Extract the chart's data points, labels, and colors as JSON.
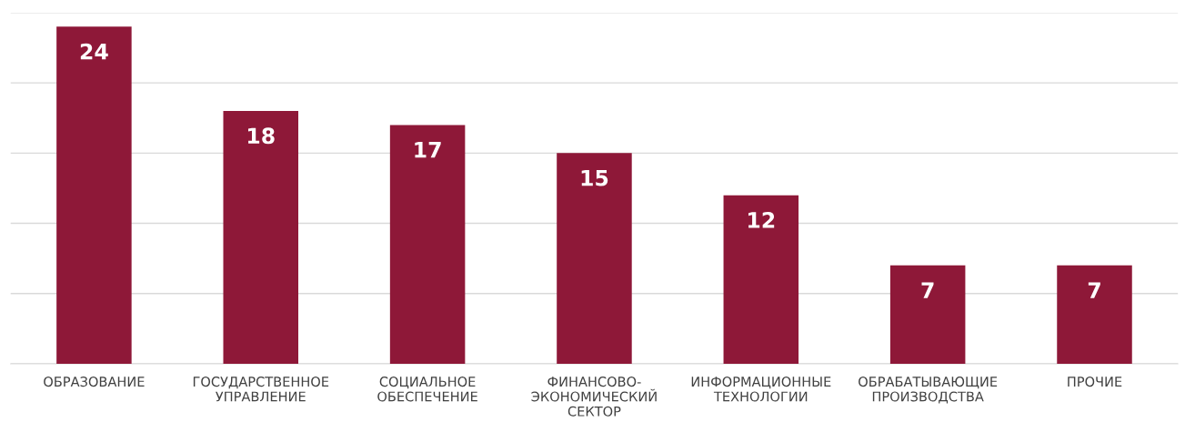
{
  "chart_data": {
    "type": "bar",
    "categories": [
      "ОБРАЗОВАНИЕ",
      "ГОСУДАРСТВЕННОЕ\nУПРАВЛЕНИЕ",
      "СОЦИАЛЬНОЕ\nОБЕСПЕЧЕНИЕ",
      "ФИНАНСОВО-\nЭКОНОМИЧЕСКИЙ\nСЕКТОР",
      "ИНФОРМАЦИОННЫЕ\nТЕХНОЛОГИИ",
      "ОБРАБАТЫВАЮЩИЕ\nПРОИЗВОДСТВА",
      "ПРОЧИЕ"
    ],
    "values": [
      24,
      18,
      17,
      15,
      12,
      7,
      7
    ],
    "color": "#8e1838",
    "ylim": [
      0,
      25
    ],
    "yticks": [
      {
        "value": 0,
        "label": null
      },
      {
        "value": 5,
        "label": null
      },
      {
        "value": 10,
        "label": null
      },
      {
        "value": 15,
        "label": null
      },
      {
        "value": 20,
        "label": null
      },
      {
        "value": 25,
        "label": null
      }
    ],
    "tick_labels": "x",
    "grid": "y",
    "data_labels": true
  }
}
